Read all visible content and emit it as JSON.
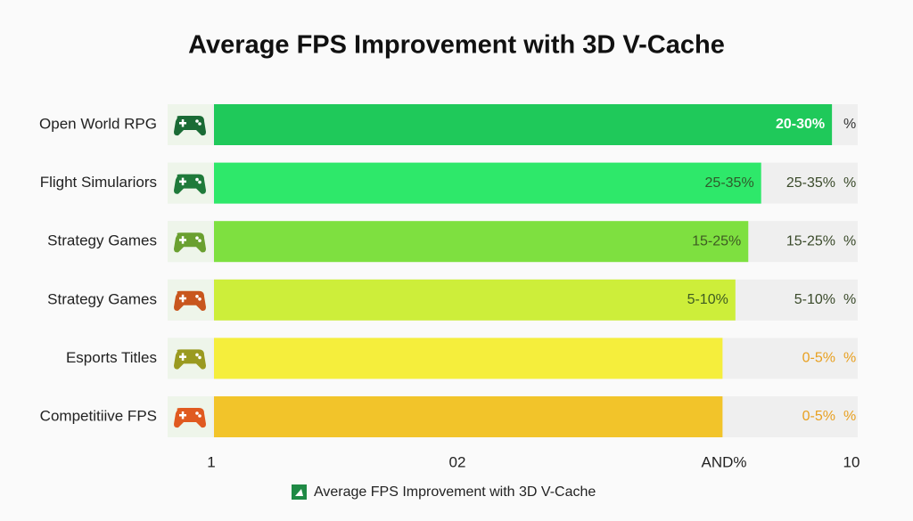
{
  "chart_data": {
    "type": "hbar",
    "title": "Average FPS Improvement with 3D V-Cache",
    "categories": [
      "Open World RPG",
      "Flight Simulariors",
      "Strategy Games",
      "Strategy Games",
      "Esports Titles",
      "Competitiive FPS"
    ],
    "values": [
      96,
      85,
      83,
      81,
      79,
      79
    ],
    "xlim": [
      0,
      100
    ],
    "colors": [
      "#1fc95a",
      "#2ee86a",
      "#7ee040",
      "#cdee3a",
      "#f5ee3c",
      "#f2c42a"
    ],
    "icon_colors": [
      "#1a6b35",
      "#1f7a3a",
      "#6aa030",
      "#c8561e",
      "#9a9a20",
      "#e05a20"
    ],
    "inner_labels": [
      "20-30%",
      "25-35%",
      "15-25%",
      "5-10%",
      null,
      null
    ],
    "inner_label_colors": [
      "#ffffff",
      "#2f5a2a",
      "#3d5a22",
      "#3d5a22",
      null,
      null
    ],
    "outer_labels": [
      null,
      "25-35%",
      "15-25%",
      "5-10%",
      "0-5%",
      "0-5%"
    ],
    "outer_label_colors": [
      "#333333",
      "#3a4a2a",
      "#3a4a2a",
      "#3a4a2a",
      "#e8a020",
      "#e8a020"
    ],
    "suffixes": [
      "%",
      "%",
      "%",
      "%",
      "%",
      "%"
    ],
    "axis_labels": [
      "1",
      "02",
      "AND%",
      "10"
    ],
    "legend": "Average FPS Improvement with 3D V-Cache",
    "legend_color": "#1f8a45"
  }
}
